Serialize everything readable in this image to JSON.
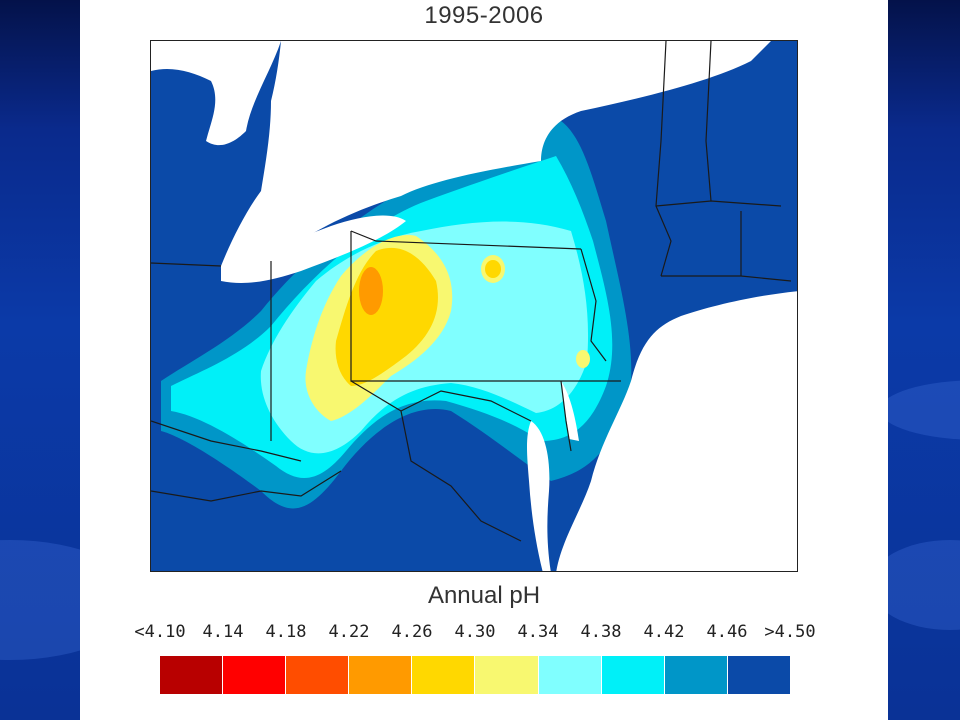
{
  "slide": {
    "title": "1995-2006",
    "subtitle": "Annual pH"
  },
  "legend": {
    "labels": [
      "<4.10",
      "4.14",
      "4.18",
      "4.22",
      "4.26",
      "4.30",
      "4.34",
      "4.38",
      "4.42",
      "4.46",
      ">4.50"
    ],
    "colors": [
      "#b80000",
      "#ff0000",
      "#ff4d00",
      "#ff9a00",
      "#ffd800",
      "#f8f870",
      "#80ffff",
      "#00f0f8",
      "#0096c8",
      "#0b4aa8"
    ]
  },
  "map_colors": {
    "land_background": "#0b4aa8",
    "water": "#ffffff",
    "boundary": "#1a1a1a"
  }
}
